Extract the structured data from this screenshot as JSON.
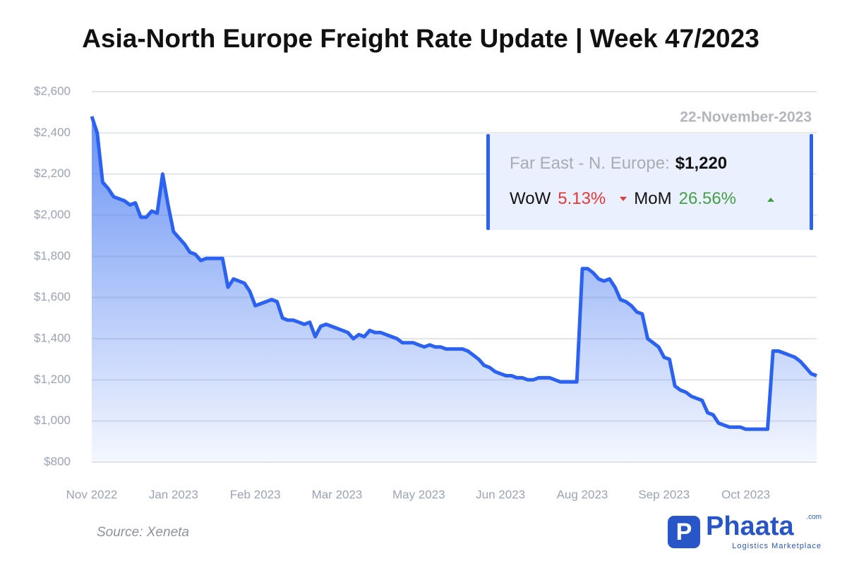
{
  "chart_data": {
    "type": "area",
    "title": "Asia-North Europe Freight Rate Update | Week 47/2023",
    "source": "Source: Xeneta",
    "brand": {
      "name": "Phaata",
      "suffix": ".com",
      "tagline": "Logistics Marketplace"
    },
    "info": {
      "date": "22-November-2023",
      "route": "Far East - N. Europe:",
      "rate": "$1,220",
      "wow_label": "WoW",
      "wow": "5.13%",
      "mom_label": "MoM",
      "mom": "26.56%"
    },
    "color": "#2b62f2",
    "grid": true,
    "xlim": [
      0,
      133
    ],
    "xticks": [
      {
        "value": 0,
        "label": "Nov 2022"
      },
      {
        "value": 15,
        "label": "Jan 2023"
      },
      {
        "value": 30,
        "label": "Feb 2023"
      },
      {
        "value": 45,
        "label": "Mar 2023"
      },
      {
        "value": 60,
        "label": "May 2023"
      },
      {
        "value": 75,
        "label": "Jun 2023"
      },
      {
        "value": 90,
        "label": "Aug 2023"
      },
      {
        "value": 105,
        "label": "Sep 2023"
      },
      {
        "value": 120,
        "label": "Oct 2023"
      }
    ],
    "ylim": [
      800,
      2600
    ],
    "yticks": [
      {
        "value": 800,
        "label": "$800"
      },
      {
        "value": 1000,
        "label": "$1,000"
      },
      {
        "value": 1200,
        "label": "$1,200"
      },
      {
        "value": 1400,
        "label": "$1,400"
      },
      {
        "value": 1600,
        "label": "$1,600"
      },
      {
        "value": 1800,
        "label": "$1,800"
      },
      {
        "value": 2000,
        "label": "$2,000"
      },
      {
        "value": 2200,
        "label": "$2,200"
      },
      {
        "value": 2400,
        "label": "$2,400"
      },
      {
        "value": 2600,
        "label": "$2,600"
      }
    ],
    "values": [
      2480,
      2400,
      2160,
      2130,
      2090,
      2080,
      2070,
      2050,
      2060,
      1990,
      1990,
      2020,
      2010,
      2200,
      2050,
      1920,
      1890,
      1860,
      1820,
      1810,
      1780,
      1790,
      1790,
      1790,
      1790,
      1650,
      1690,
      1680,
      1670,
      1630,
      1560,
      1570,
      1580,
      1590,
      1580,
      1500,
      1490,
      1490,
      1480,
      1470,
      1480,
      1410,
      1460,
      1470,
      1460,
      1450,
      1440,
      1430,
      1400,
      1420,
      1410,
      1440,
      1430,
      1430,
      1420,
      1410,
      1400,
      1380,
      1380,
      1380,
      1370,
      1360,
      1370,
      1360,
      1360,
      1350,
      1350,
      1350,
      1350,
      1340,
      1320,
      1300,
      1270,
      1260,
      1240,
      1230,
      1220,
      1220,
      1210,
      1210,
      1200,
      1200,
      1210,
      1210,
      1210,
      1200,
      1190,
      1190,
      1190,
      1190,
      1740,
      1740,
      1720,
      1690,
      1680,
      1690,
      1650,
      1590,
      1580,
      1560,
      1530,
      1520,
      1400,
      1380,
      1360,
      1310,
      1300,
      1170,
      1150,
      1140,
      1120,
      1110,
      1100,
      1040,
      1030,
      990,
      980,
      970,
      970,
      970,
      960,
      960,
      960,
      960,
      960,
      1340,
      1340,
      1330,
      1320,
      1310,
      1290,
      1260,
      1230,
      1220
    ]
  }
}
